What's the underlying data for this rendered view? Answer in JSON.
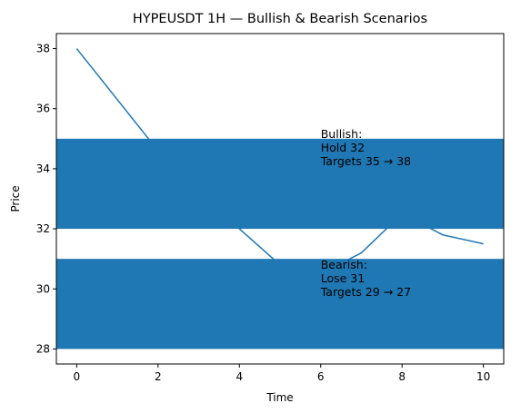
{
  "chart_data": {
    "type": "line",
    "title": "HYPEUSDT 1H — Bullish & Bearish Scenarios",
    "xlabel": "Time",
    "ylabel": "Price",
    "xlim": [
      -0.5,
      10.5
    ],
    "ylim": [
      27.5,
      38.5
    ],
    "xticks": [
      0,
      2,
      4,
      6,
      8,
      10
    ],
    "yticks": [
      28,
      30,
      32,
      34,
      36,
      38
    ],
    "grid": false,
    "series": [
      {
        "color": "#1f77b4",
        "x": [
          0,
          1,
          2,
          3,
          4,
          5,
          6,
          7,
          8,
          9,
          10
        ],
        "y": [
          38,
          36.3,
          34.6,
          33.3,
          32,
          30.8,
          30.5,
          31.2,
          32.5,
          31.8,
          31.5
        ]
      }
    ],
    "bands": [
      {
        "y0": 32,
        "y1": 35,
        "color": "#1f77b4"
      },
      {
        "y0": 28,
        "y1": 31,
        "color": "#1f77b4"
      }
    ],
    "annotations": [
      {
        "x": 6,
        "y": 35,
        "lines": [
          "Bullish:",
          "Hold 32",
          "Targets 35 → 38"
        ]
      },
      {
        "x": 6,
        "y": 30.65,
        "lines": [
          "Bearish:",
          "Lose 31",
          "Targets 29 → 27"
        ]
      }
    ]
  }
}
